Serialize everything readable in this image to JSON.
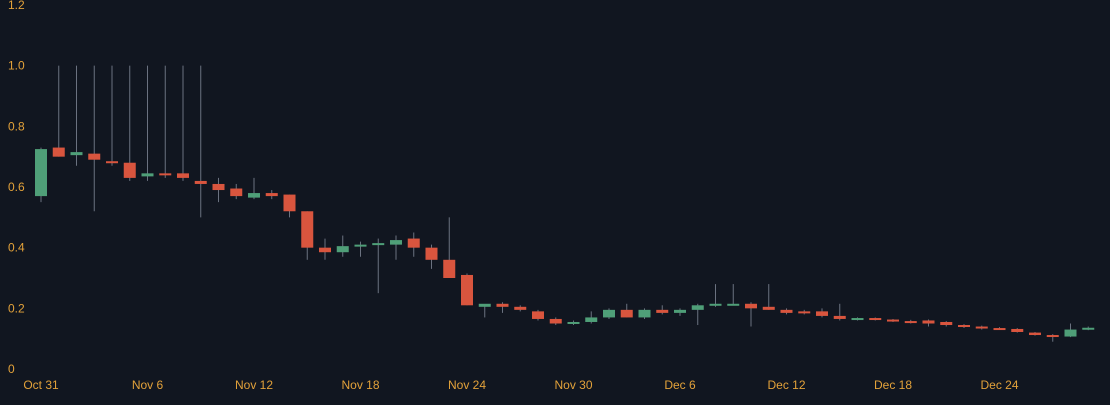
{
  "colors": {
    "background": "#111620",
    "up": "#4f9f78",
    "down": "#d9553e",
    "wick": "#6b7280",
    "axis_text": "#e3a23a"
  },
  "chart_data": {
    "type": "candlestick",
    "title": "",
    "xlabel": "",
    "ylabel": "",
    "ylim": [
      0,
      1.2
    ],
    "grid": false,
    "y_ticks": [
      {
        "value": 0,
        "label": "0"
      },
      {
        "value": 0.2,
        "label": "0.2"
      },
      {
        "value": 0.4,
        "label": "0.4"
      },
      {
        "value": 0.6,
        "label": "0.6"
      },
      {
        "value": 0.8,
        "label": "0.8"
      },
      {
        "value": 1.0,
        "label": "1.0"
      },
      {
        "value": 1.2,
        "label": "1.2"
      }
    ],
    "x_ticks": [
      {
        "index": 0,
        "label": "Oct 31"
      },
      {
        "index": 6,
        "label": "Nov 6"
      },
      {
        "index": 12,
        "label": "Nov 12"
      },
      {
        "index": 18,
        "label": "Nov 18"
      },
      {
        "index": 24,
        "label": "Nov 24"
      },
      {
        "index": 30,
        "label": "Nov 30"
      },
      {
        "index": 36,
        "label": "Dec 6"
      },
      {
        "index": 42,
        "label": "Dec 12"
      },
      {
        "index": 48,
        "label": "Dec 18"
      },
      {
        "index": 54,
        "label": "Dec 24"
      }
    ],
    "candles": [
      {
        "date": "Oct 31",
        "open": 0.57,
        "high": 0.73,
        "low": 0.55,
        "close": 0.725
      },
      {
        "date": "Nov 1",
        "open": 0.73,
        "high": 1.0,
        "low": 0.7,
        "close": 0.7
      },
      {
        "date": "Nov 2",
        "open": 0.705,
        "high": 1.0,
        "low": 0.67,
        "close": 0.715
      },
      {
        "date": "Nov 3",
        "open": 0.71,
        "high": 1.0,
        "low": 0.52,
        "close": 0.69
      },
      {
        "date": "Nov 4",
        "open": 0.685,
        "high": 1.0,
        "low": 0.67,
        "close": 0.68
      },
      {
        "date": "Nov 5",
        "open": 0.68,
        "high": 1.0,
        "low": 0.62,
        "close": 0.63
      },
      {
        "date": "Nov 6",
        "open": 0.635,
        "high": 1.0,
        "low": 0.62,
        "close": 0.645
      },
      {
        "date": "Nov 7",
        "open": 0.645,
        "high": 1.0,
        "low": 0.63,
        "close": 0.64
      },
      {
        "date": "Nov 8",
        "open": 0.645,
        "high": 1.0,
        "low": 0.62,
        "close": 0.63
      },
      {
        "date": "Nov 9",
        "open": 0.62,
        "high": 1.0,
        "low": 0.5,
        "close": 0.61
      },
      {
        "date": "Nov 10",
        "open": 0.61,
        "high": 0.63,
        "low": 0.55,
        "close": 0.59
      },
      {
        "date": "Nov 11",
        "open": 0.595,
        "high": 0.61,
        "low": 0.56,
        "close": 0.57
      },
      {
        "date": "Nov 12",
        "open": 0.565,
        "high": 0.63,
        "low": 0.56,
        "close": 0.58
      },
      {
        "date": "Nov 13",
        "open": 0.58,
        "high": 0.59,
        "low": 0.56,
        "close": 0.57
      },
      {
        "date": "Nov 14",
        "open": 0.575,
        "high": 0.575,
        "low": 0.5,
        "close": 0.52
      },
      {
        "date": "Nov 15",
        "open": 0.52,
        "high": 0.52,
        "low": 0.36,
        "close": 0.4
      },
      {
        "date": "Nov 16",
        "open": 0.4,
        "high": 0.43,
        "low": 0.36,
        "close": 0.385
      },
      {
        "date": "Nov 17",
        "open": 0.385,
        "high": 0.44,
        "low": 0.37,
        "close": 0.405
      },
      {
        "date": "Nov 18",
        "open": 0.405,
        "high": 0.42,
        "low": 0.37,
        "close": 0.41
      },
      {
        "date": "Nov 19",
        "open": 0.41,
        "high": 0.43,
        "low": 0.25,
        "close": 0.415
      },
      {
        "date": "Nov 20",
        "open": 0.41,
        "high": 0.44,
        "low": 0.36,
        "close": 0.425
      },
      {
        "date": "Nov 21",
        "open": 0.43,
        "high": 0.45,
        "low": 0.37,
        "close": 0.4
      },
      {
        "date": "Nov 22",
        "open": 0.4,
        "high": 0.41,
        "low": 0.33,
        "close": 0.36
      },
      {
        "date": "Nov 23",
        "open": 0.36,
        "high": 0.5,
        "low": 0.31,
        "close": 0.3
      },
      {
        "date": "Nov 24",
        "open": 0.31,
        "high": 0.315,
        "low": 0.21,
        "close": 0.21
      },
      {
        "date": "Nov 25",
        "open": 0.205,
        "high": 0.21,
        "low": 0.17,
        "close": 0.215
      },
      {
        "date": "Nov 26",
        "open": 0.215,
        "high": 0.22,
        "low": 0.185,
        "close": 0.205
      },
      {
        "date": "Nov 27",
        "open": 0.205,
        "high": 0.21,
        "low": 0.19,
        "close": 0.195
      },
      {
        "date": "Nov 28",
        "open": 0.19,
        "high": 0.195,
        "low": 0.16,
        "close": 0.165
      },
      {
        "date": "Nov 29",
        "open": 0.165,
        "high": 0.17,
        "low": 0.145,
        "close": 0.15
      },
      {
        "date": "Nov 30",
        "open": 0.15,
        "high": 0.16,
        "low": 0.145,
        "close": 0.155
      },
      {
        "date": "Dec 1",
        "open": 0.155,
        "high": 0.19,
        "low": 0.15,
        "close": 0.17
      },
      {
        "date": "Dec 2",
        "open": 0.17,
        "high": 0.2,
        "low": 0.165,
        "close": 0.195
      },
      {
        "date": "Dec 3",
        "open": 0.195,
        "high": 0.215,
        "low": 0.17,
        "close": 0.17
      },
      {
        "date": "Dec 4",
        "open": 0.17,
        "high": 0.2,
        "low": 0.165,
        "close": 0.195
      },
      {
        "date": "Dec 5",
        "open": 0.195,
        "high": 0.21,
        "low": 0.18,
        "close": 0.185
      },
      {
        "date": "Dec 6",
        "open": 0.185,
        "high": 0.2,
        "low": 0.175,
        "close": 0.195
      },
      {
        "date": "Dec 7",
        "open": 0.195,
        "high": 0.215,
        "low": 0.145,
        "close": 0.21
      },
      {
        "date": "Dec 8",
        "open": 0.215,
        "high": 0.28,
        "low": 0.205,
        "close": 0.215
      },
      {
        "date": "Dec 9",
        "open": 0.215,
        "high": 0.28,
        "low": 0.21,
        "close": 0.215
      },
      {
        "date": "Dec 10",
        "open": 0.215,
        "high": 0.22,
        "low": 0.14,
        "close": 0.2
      },
      {
        "date": "Dec 11",
        "open": 0.205,
        "high": 0.28,
        "low": 0.195,
        "close": 0.195
      },
      {
        "date": "Dec 12",
        "open": 0.195,
        "high": 0.2,
        "low": 0.18,
        "close": 0.185
      },
      {
        "date": "Dec 13",
        "open": 0.19,
        "high": 0.195,
        "low": 0.18,
        "close": 0.185
      },
      {
        "date": "Dec 14",
        "open": 0.19,
        "high": 0.2,
        "low": 0.17,
        "close": 0.175
      },
      {
        "date": "Dec 15",
        "open": 0.175,
        "high": 0.215,
        "low": 0.16,
        "close": 0.165
      },
      {
        "date": "Dec 16",
        "open": 0.165,
        "high": 0.17,
        "low": 0.16,
        "close": 0.168
      },
      {
        "date": "Dec 17",
        "open": 0.168,
        "high": 0.17,
        "low": 0.16,
        "close": 0.163
      },
      {
        "date": "Dec 18",
        "open": 0.163,
        "high": 0.165,
        "low": 0.155,
        "close": 0.158
      },
      {
        "date": "Dec 19",
        "open": 0.158,
        "high": 0.162,
        "low": 0.15,
        "close": 0.155
      },
      {
        "date": "Dec 20",
        "open": 0.16,
        "high": 0.163,
        "low": 0.14,
        "close": 0.15
      },
      {
        "date": "Dec 21",
        "open": 0.155,
        "high": 0.158,
        "low": 0.14,
        "close": 0.145
      },
      {
        "date": "Dec 22",
        "open": 0.145,
        "high": 0.148,
        "low": 0.135,
        "close": 0.14
      },
      {
        "date": "Dec 23",
        "open": 0.14,
        "high": 0.143,
        "low": 0.13,
        "close": 0.135
      },
      {
        "date": "Dec 24",
        "open": 0.135,
        "high": 0.138,
        "low": 0.13,
        "close": 0.133
      },
      {
        "date": "Dec 25",
        "open": 0.132,
        "high": 0.135,
        "low": 0.12,
        "close": 0.122
      },
      {
        "date": "Dec 26",
        "open": 0.12,
        "high": 0.122,
        "low": 0.11,
        "close": 0.112
      },
      {
        "date": "Dec 27",
        "open": 0.112,
        "high": 0.115,
        "low": 0.09,
        "close": 0.107
      },
      {
        "date": "Dec 28",
        "open": 0.107,
        "high": 0.15,
        "low": 0.105,
        "close": 0.13
      },
      {
        "date": "Dec 29",
        "open": 0.133,
        "high": 0.14,
        "low": 0.128,
        "close": 0.136
      }
    ]
  }
}
